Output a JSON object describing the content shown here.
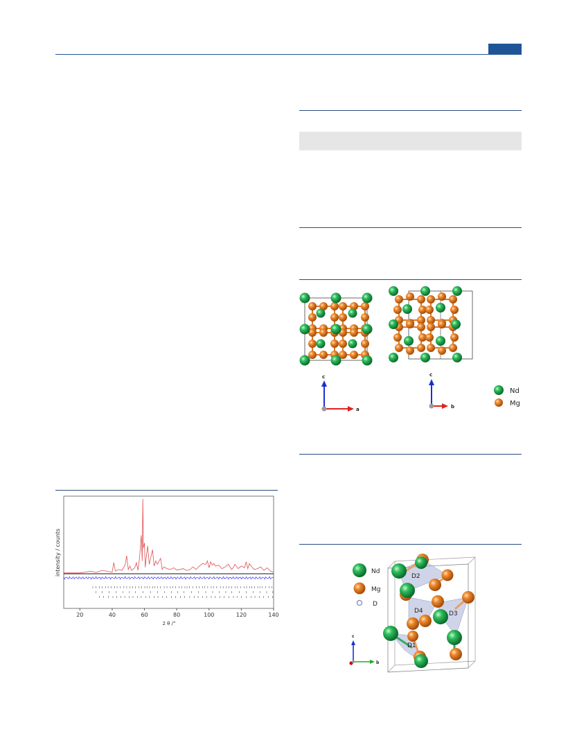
{
  "figure_plot": {
    "ylabel": "intensity / counts",
    "xlabel": "2 θ /°"
  },
  "chart_data": {
    "type": "line",
    "xlabel": "2 θ /°",
    "ylabel": "intensity / counts",
    "xlim": [
      10,
      140
    ],
    "x_ticks": [
      20,
      40,
      60,
      80,
      100,
      120,
      140
    ],
    "series": [
      {
        "x": [
          10,
          20,
          27,
          30,
          34,
          38,
          40,
          41,
          42,
          44,
          46,
          48,
          49,
          50,
          51,
          52,
          54,
          55,
          56,
          57,
          58,
          58.6,
          59,
          59.4,
          60,
          60.5,
          61,
          62,
          63,
          64,
          65,
          66,
          67,
          68,
          70,
          71,
          72,
          74,
          76,
          78,
          80,
          82,
          84,
          86,
          88,
          90,
          92,
          94,
          96,
          98,
          99,
          100,
          101,
          102,
          103,
          104,
          106,
          108,
          110,
          112,
          114,
          115,
          116,
          118,
          120,
          122,
          123,
          124,
          125,
          126,
          128,
          130,
          132,
          134,
          136,
          138,
          140
        ],
        "y": [
          2,
          2,
          6,
          3,
          8,
          5,
          4,
          26,
          6,
          10,
          8,
          20,
          42,
          10,
          18,
          8,
          14,
          26,
          8,
          38,
          90,
          30,
          175,
          60,
          72,
          15,
          36,
          65,
          22,
          40,
          56,
          18,
          30,
          22,
          36,
          10,
          16,
          12,
          10,
          14,
          9,
          10,
          12,
          8,
          9,
          16,
          10,
          18,
          24,
          22,
          30,
          14,
          28,
          20,
          24,
          18,
          20,
          12,
          16,
          22,
          10,
          14,
          22,
          12,
          18,
          14,
          28,
          12,
          24,
          18,
          10,
          12,
          16,
          8,
          14,
          6,
          4
        ]
      }
    ]
  },
  "figure_structure": {
    "axis_a": "a",
    "axis_b": "b",
    "axis_c1": "c",
    "axis_c2": "c",
    "legend_nd": "Nd",
    "legend_mg": "Mg"
  },
  "figure_deuteride": {
    "legend_nd": "Nd",
    "legend_mg": "Mg",
    "legend_d": "D",
    "site_d1": "D1",
    "site_d2": "D2",
    "site_d3": "D3",
    "site_d4": "D4",
    "axis_c": "c",
    "axis_b": "b"
  },
  "colors": {
    "rule": "#2a4a7f",
    "tab": "#1f5597",
    "nd": "#1ea24a",
    "mg": "#e9822b",
    "d_polyhedra": "#a9b0d6"
  }
}
